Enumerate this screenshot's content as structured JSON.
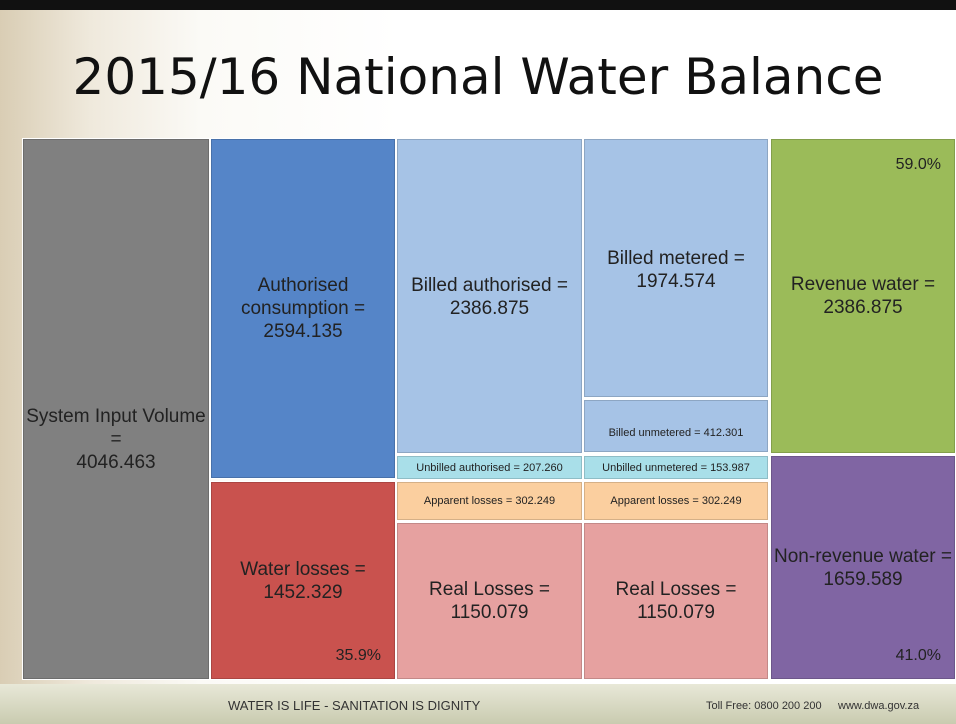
{
  "title": "2015/16 National Water Balance",
  "boxes": [
    {
      "lines": [
        "System Input Volume =",
        "4046.463"
      ]
    },
    {
      "lines": [
        "Authorised",
        "consumption =",
        "2594.135"
      ]
    },
    {
      "lines": [
        "Water losses =",
        "1452.329"
      ],
      "percent": "35.9%"
    },
    {
      "lines": [
        "Billed authorised =",
        "2386.875"
      ]
    },
    {
      "lines": [
        "Unbilled authorised = 207.260"
      ]
    },
    {
      "lines": [
        "Apparent losses = 302.249"
      ]
    },
    {
      "lines": [
        "Real Losses =",
        "1150.079"
      ]
    },
    {
      "lines": [
        "Billed metered =",
        "1974.574"
      ]
    },
    {
      "lines": [
        "Billed unmetered = 412.301"
      ]
    },
    {
      "lines": [
        "Unbilled unmetered = 153.987"
      ]
    },
    {
      "lines": [
        "Apparent losses = 302.249"
      ]
    },
    {
      "lines": [
        "Real Losses =",
        "1150.079"
      ]
    },
    {
      "lines": [
        "Revenue water =",
        "2386.875"
      ],
      "percent": "59.0%"
    },
    {
      "lines": [
        "Non-revenue water =",
        "1659.589"
      ],
      "percent": "41.0%"
    }
  ],
  "footer": {
    "motto": "WATER IS LIFE - SANITATION IS DIGNITY",
    "phone": "Toll Free: 0800 200 200",
    "web": "www.dwa.gov.za"
  }
}
